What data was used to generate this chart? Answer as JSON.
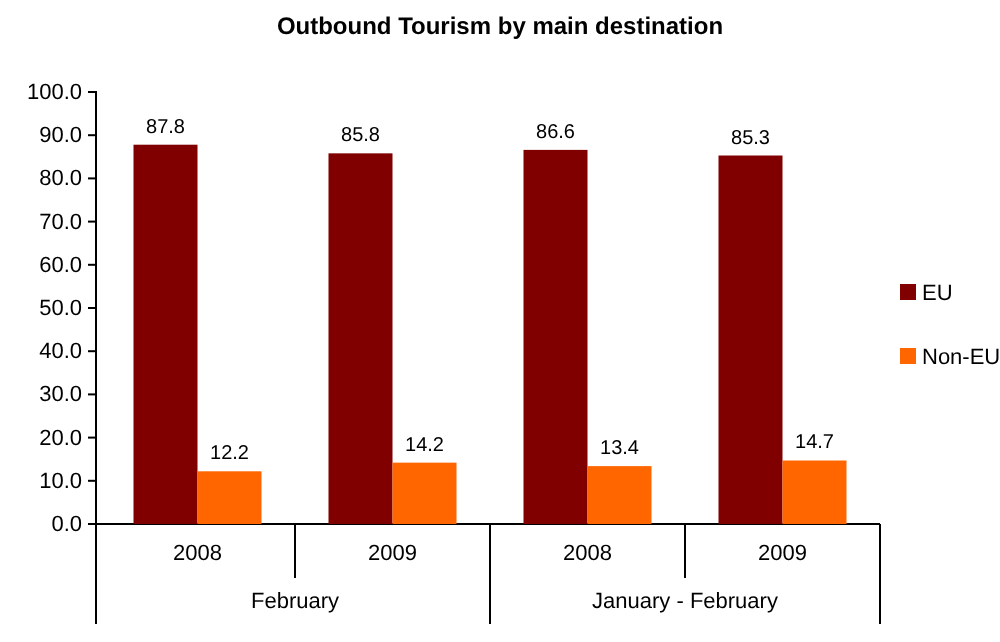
{
  "chart_data": {
    "type": "bar",
    "title": "Outbound Tourism by main destination",
    "categories": [
      "2008",
      "2009",
      "2008",
      "2009"
    ],
    "series": [
      {
        "name": "EU",
        "color": "#800000",
        "values": [
          87.8,
          85.8,
          86.6,
          85.3
        ]
      },
      {
        "name": "Non-EU",
        "color": "#ff6600",
        "values": [
          12.2,
          14.2,
          13.4,
          14.7
        ]
      }
    ],
    "annotations": [
      "February",
      "January - February"
    ],
    "ylim": [
      0,
      100
    ],
    "yticks": [
      {
        "value": 0,
        "label": "0.0"
      },
      {
        "value": 10,
        "label": "10.0"
      },
      {
        "value": 20,
        "label": "20.0"
      },
      {
        "value": 30,
        "label": "30.0"
      },
      {
        "value": 40,
        "label": "40.0"
      },
      {
        "value": 50,
        "label": "50.0"
      },
      {
        "value": 60,
        "label": "60.0"
      },
      {
        "value": 70,
        "label": "70.0"
      },
      {
        "value": 80,
        "label": "80.0"
      },
      {
        "value": 90,
        "label": "90.0"
      },
      {
        "value": 100,
        "label": "100.0"
      }
    ],
    "data_labels": true,
    "legend": "right",
    "grid": false
  }
}
